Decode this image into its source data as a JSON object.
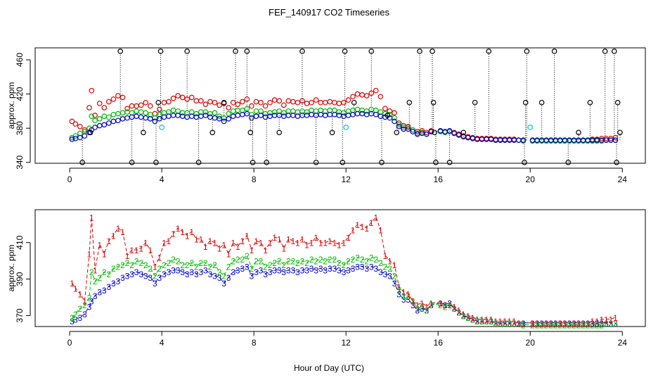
{
  "chart_data": [
    {
      "type": "scatter",
      "title": "FEF_140917  CO2 Timeseries",
      "xlabel": "",
      "ylabel": "approx. ppm",
      "xlim": [
        -1.5,
        25
      ],
      "ylim": [
        339,
        474
      ],
      "x_ticks": [
        "0",
        "4",
        "8",
        "12",
        "16",
        "20",
        "24"
      ],
      "y_ticks": [
        "340",
        "380",
        "420",
        "460"
      ],
      "series": [
        {
          "name": "outlier",
          "color": "#000000",
          "symbol": "circle",
          "x": [
            0.55,
            0.9,
            2.2,
            2.7,
            3.2,
            3.75,
            3.85,
            3.95,
            5.1,
            5.6,
            6.2,
            6.7,
            7.2,
            7.7,
            7.85,
            7.95,
            8.55,
            9.1,
            10.1,
            10.7,
            11.4,
            11.85,
            11.95,
            12.35,
            13.1,
            13.55,
            13.8,
            14.2,
            14.75,
            15.2,
            15.75,
            15.8,
            15.85,
            15.9,
            16.5,
            17.1,
            17.6,
            18.2,
            19.75,
            19.8,
            19.85,
            20.5,
            21.05,
            21.65,
            22.1,
            22.6,
            23.25,
            23.65,
            23.75,
            23.8,
            23.9
          ],
          "y": [
            340,
            375,
            470,
            340,
            375,
            340,
            410,
            470,
            470,
            340,
            375,
            410,
            470,
            470,
            375,
            340,
            340,
            375,
            470,
            340,
            375,
            340,
            470,
            410,
            470,
            340,
            395,
            375,
            410,
            470,
            470,
            410,
            375,
            340,
            340,
            375,
            410,
            470,
            340,
            410,
            470,
            410,
            470,
            340,
            375,
            410,
            470,
            470,
            340,
            410,
            375
          ]
        },
        {
          "name": "cyan",
          "color": "#00cccc",
          "symbol": "circle",
          "x": [
            4.0,
            12.0,
            20.0
          ],
          "y": [
            381,
            381,
            381
          ]
        }
      ]
    },
    {
      "type": "scatter",
      "title": "",
      "xlabel": "Hour of Day (UTC)",
      "ylabel": "approx. ppm",
      "xlim": [
        -1.5,
        25
      ],
      "ylim": [
        364,
        428
      ],
      "x_ticks": [
        "0",
        "4",
        "8",
        "12",
        "16",
        "20",
        "24"
      ],
      "y_ticks": [
        "370",
        "390",
        "410"
      ],
      "series": [
        {
          "name": "1",
          "color": "#dd0000",
          "symbol": "1"
        },
        {
          "name": "2",
          "color": "#00bb00",
          "symbol": "2"
        },
        {
          "name": "3",
          "color": "#0000cc",
          "symbol": "3"
        }
      ]
    }
  ],
  "timeseries": {
    "series1": {
      "name": "1",
      "color": "#dd0000",
      "x": [
        0.1,
        0.25,
        0.45,
        0.65,
        0.85,
        0.95,
        1.1,
        1.3,
        1.5,
        1.7,
        1.9,
        2.1,
        2.3,
        2.5,
        2.7,
        2.9,
        3.1,
        3.3,
        3.5,
        3.7,
        3.9,
        4.1,
        4.3,
        4.5,
        4.7,
        4.9,
        5.1,
        5.3,
        5.5,
        5.7,
        5.9,
        6.1,
        6.3,
        6.5,
        6.7,
        6.9,
        7.1,
        7.3,
        7.5,
        7.7,
        7.9,
        8.1,
        8.3,
        8.5,
        8.7,
        8.9,
        9.1,
        9.3,
        9.5,
        9.7,
        9.9,
        10.1,
        10.3,
        10.5,
        10.7,
        10.9,
        11.1,
        11.3,
        11.5,
        11.7,
        11.9,
        12.1,
        12.3,
        12.5,
        12.7,
        12.9,
        13.1,
        13.3,
        13.5,
        13.7,
        13.9,
        14.1,
        14.3,
        14.5,
        14.7,
        14.9,
        15.1,
        15.3,
        15.5,
        15.7,
        16.1,
        16.3,
        16.5,
        16.7,
        16.9,
        17.1,
        17.3,
        17.5,
        17.7,
        17.9,
        18.1,
        18.3,
        18.5,
        18.7,
        18.9,
        19.1,
        19.3,
        19.5,
        19.7,
        20.1,
        20.3,
        20.5,
        20.7,
        20.9,
        21.1,
        21.3,
        21.5,
        21.7,
        21.9,
        22.1,
        22.3,
        22.5,
        22.7,
        22.9,
        23.1,
        23.3,
        23.5,
        23.7
      ],
      "y": [
        388,
        385,
        382,
        378,
        404,
        424,
        395,
        409,
        404,
        411,
        414,
        418,
        416,
        403,
        406,
        406,
        407,
        410,
        406,
        397,
        402,
        410,
        411,
        415,
        418,
        416,
        414,
        416,
        412,
        412,
        408,
        411,
        410,
        407,
        409,
        404,
        410,
        408,
        411,
        414,
        406,
        411,
        410,
        406,
        410,
        413,
        412,
        407,
        412,
        411,
        410,
        412,
        409,
        410,
        413,
        410,
        410,
        411,
        410,
        409,
        410,
        413,
        417,
        420,
        419,
        418,
        421,
        424,
        417,
        403,
        400,
        398,
        386,
        383,
        382,
        378,
        376,
        377,
        375,
        377,
        377,
        376,
        376,
        375,
        373,
        371,
        370,
        369,
        368,
        368,
        368,
        368,
        367,
        367,
        367,
        367,
        367,
        366,
        366,
        366,
        366,
        366,
        366,
        366,
        366,
        366,
        366,
        366,
        366,
        366,
        366,
        366,
        367,
        367,
        368,
        368,
        368,
        369
      ]
    },
    "series2": {
      "name": "2",
      "color": "#00bb00",
      "x": [
        0.1,
        0.25,
        0.45,
        0.65,
        0.85,
        0.95,
        1.1,
        1.3,
        1.5,
        1.7,
        1.9,
        2.1,
        2.3,
        2.5,
        2.7,
        2.9,
        3.1,
        3.3,
        3.5,
        3.7,
        3.9,
        4.1,
        4.3,
        4.5,
        4.7,
        4.9,
        5.1,
        5.3,
        5.5,
        5.7,
        5.9,
        6.1,
        6.3,
        6.5,
        6.7,
        6.9,
        7.1,
        7.3,
        7.5,
        7.7,
        7.9,
        8.1,
        8.3,
        8.5,
        8.7,
        8.9,
        9.1,
        9.3,
        9.5,
        9.7,
        9.9,
        10.1,
        10.3,
        10.5,
        10.7,
        10.9,
        11.1,
        11.3,
        11.5,
        11.7,
        11.9,
        12.1,
        12.3,
        12.5,
        12.7,
        12.9,
        13.1,
        13.3,
        13.5,
        13.7,
        13.9,
        14.1,
        14.3,
        14.5,
        14.7,
        14.9,
        15.1,
        15.3,
        15.5,
        15.7,
        16.1,
        16.3,
        16.5,
        16.7,
        16.9,
        17.1,
        17.3,
        17.5,
        17.7,
        17.9,
        18.1,
        18.3,
        18.5,
        18.7,
        18.9,
        19.1,
        19.3,
        19.5,
        19.7,
        20.1,
        20.3,
        20.5,
        20.7,
        20.9,
        21.1,
        21.3,
        21.5,
        21.7,
        21.9,
        22.1,
        22.3,
        22.5,
        22.7,
        22.9,
        23.1,
        23.3,
        23.5,
        23.7
      ],
      "y": [
        369,
        371,
        374,
        376,
        380,
        394,
        389,
        391,
        394,
        393,
        396,
        397,
        398,
        399,
        398,
        400,
        399,
        398,
        396,
        392,
        396,
        398,
        399,
        401,
        400,
        398,
        398,
        399,
        397,
        399,
        399,
        397,
        398,
        394,
        392,
        397,
        400,
        401,
        401,
        403,
        396,
        400,
        400,
        397,
        398,
        399,
        400,
        398,
        400,
        400,
        399,
        400,
        399,
        401,
        400,
        401,
        400,
        401,
        401,
        399,
        398,
        400,
        401,
        402,
        401,
        400,
        402,
        401,
        399,
        397,
        396,
        392,
        384,
        381,
        381,
        378,
        374,
        375,
        373,
        376,
        376,
        375,
        376,
        374,
        372,
        370,
        369,
        368,
        367,
        367,
        367,
        367,
        366,
        366,
        366,
        366,
        366,
        366,
        365,
        365,
        365,
        365,
        365,
        365,
        365,
        365,
        365,
        365,
        365,
        365,
        365,
        365,
        365,
        365,
        365,
        366,
        366,
        366
      ]
    },
    "series3": {
      "name": "3",
      "color": "#0000cc",
      "x": [
        0.1,
        0.25,
        0.45,
        0.65,
        0.85,
        0.95,
        1.1,
        1.3,
        1.5,
        1.7,
        1.9,
        2.1,
        2.3,
        2.5,
        2.7,
        2.9,
        3.1,
        3.3,
        3.5,
        3.7,
        3.9,
        4.1,
        4.3,
        4.5,
        4.7,
        4.9,
        5.1,
        5.3,
        5.5,
        5.7,
        5.9,
        6.1,
        6.3,
        6.5,
        6.7,
        6.9,
        7.1,
        7.3,
        7.5,
        7.7,
        7.9,
        8.1,
        8.3,
        8.5,
        8.7,
        8.9,
        9.1,
        9.3,
        9.5,
        9.7,
        9.9,
        10.1,
        10.3,
        10.5,
        10.7,
        10.9,
        11.1,
        11.3,
        11.5,
        11.7,
        11.9,
        12.1,
        12.3,
        12.5,
        12.7,
        12.9,
        13.1,
        13.3,
        13.5,
        13.7,
        13.9,
        14.1,
        14.3,
        14.5,
        14.7,
        14.9,
        15.1,
        15.3,
        15.5,
        15.7,
        16.1,
        16.3,
        16.5,
        16.7,
        16.9,
        17.1,
        17.3,
        17.5,
        17.7,
        17.9,
        18.1,
        18.3,
        18.5,
        18.7,
        18.9,
        19.1,
        19.3,
        19.5,
        19.7,
        20.1,
        20.3,
        20.5,
        20.7,
        20.9,
        21.1,
        21.3,
        21.5,
        21.7,
        21.9,
        22.1,
        22.3,
        22.5,
        22.7,
        22.9,
        23.1,
        23.3,
        23.5,
        23.7
      ],
      "y": [
        367,
        368,
        369,
        371,
        375,
        378,
        381,
        383,
        384,
        386,
        388,
        389,
        391,
        392,
        393,
        394,
        393,
        392,
        391,
        388,
        391,
        393,
        394,
        395,
        395,
        394,
        393,
        394,
        393,
        394,
        395,
        393,
        392,
        391,
        388,
        391,
        394,
        395,
        396,
        397,
        392,
        394,
        395,
        393,
        394,
        395,
        395,
        394,
        395,
        395,
        394,
        395,
        395,
        396,
        395,
        396,
        395,
        396,
        396,
        395,
        394,
        395,
        396,
        397,
        397,
        396,
        397,
        396,
        394,
        393,
        392,
        388,
        382,
        379,
        379,
        376,
        373,
        374,
        373,
        376,
        377,
        376,
        377,
        374,
        372,
        370,
        369,
        368,
        367,
        367,
        367,
        367,
        366,
        366,
        366,
        366,
        366,
        366,
        366,
        366,
        366,
        366,
        366,
        366,
        366,
        366,
        366,
        366,
        366,
        366,
        366,
        366,
        366,
        366,
        366,
        366,
        366,
        366
      ]
    }
  }
}
